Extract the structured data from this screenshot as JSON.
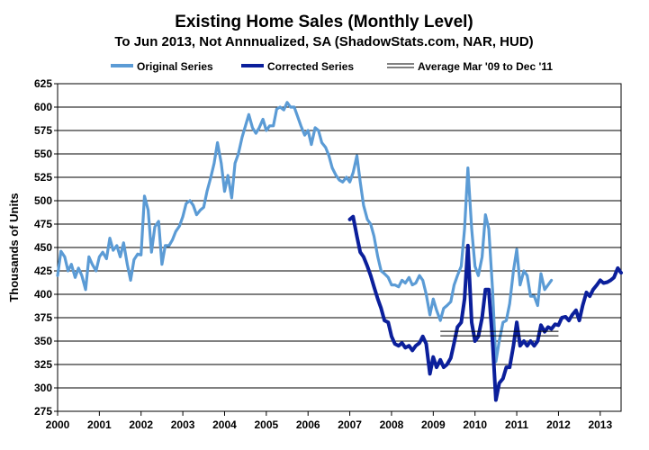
{
  "chart_data": {
    "type": "line",
    "title": "Existing Home Sales (Monthly Level)",
    "subtitle": "To Jun 2013, Not Annnualized, SA (ShadowStats.com, NAR, HUD)",
    "ylabel": "Thousands of Units",
    "xlabel": "",
    "ylim": [
      275,
      625
    ],
    "y_ticks": [
      275,
      300,
      325,
      350,
      375,
      400,
      425,
      450,
      475,
      500,
      525,
      550,
      575,
      600,
      625
    ],
    "xlim": [
      2000,
      2013.5
    ],
    "x_ticks": [
      "2000",
      "2001",
      "2002",
      "2003",
      "2004",
      "2005",
      "2006",
      "2007",
      "2008",
      "2009",
      "2010",
      "2011",
      "2012",
      "2013"
    ],
    "grid": true,
    "legend_position": "top",
    "series": [
      {
        "name": "Original Series",
        "color": "#5b9bd5",
        "points": [
          [
            2000.0,
            420
          ],
          [
            2000.08,
            446
          ],
          [
            2000.17,
            440
          ],
          [
            2000.25,
            425
          ],
          [
            2000.33,
            432
          ],
          [
            2000.42,
            418
          ],
          [
            2000.5,
            428
          ],
          [
            2000.58,
            420
          ],
          [
            2000.67,
            405
          ],
          [
            2000.75,
            440
          ],
          [
            2000.83,
            432
          ],
          [
            2000.92,
            425
          ],
          [
            2001.0,
            440
          ],
          [
            2001.08,
            445
          ],
          [
            2001.17,
            438
          ],
          [
            2001.25,
            460
          ],
          [
            2001.33,
            447
          ],
          [
            2001.42,
            452
          ],
          [
            2001.5,
            440
          ],
          [
            2001.58,
            455
          ],
          [
            2001.67,
            432
          ],
          [
            2001.75,
            415
          ],
          [
            2001.83,
            437
          ],
          [
            2001.92,
            443
          ],
          [
            2002.0,
            442
          ],
          [
            2002.08,
            505
          ],
          [
            2002.17,
            490
          ],
          [
            2002.25,
            445
          ],
          [
            2002.33,
            472
          ],
          [
            2002.42,
            478
          ],
          [
            2002.5,
            432
          ],
          [
            2002.58,
            452
          ],
          [
            2002.67,
            452
          ],
          [
            2002.75,
            458
          ],
          [
            2002.83,
            467
          ],
          [
            2002.92,
            473
          ],
          [
            2003.0,
            483
          ],
          [
            2003.08,
            497
          ],
          [
            2003.17,
            500
          ],
          [
            2003.25,
            495
          ],
          [
            2003.33,
            485
          ],
          [
            2003.42,
            490
          ],
          [
            2003.5,
            493
          ],
          [
            2003.58,
            510
          ],
          [
            2003.67,
            525
          ],
          [
            2003.75,
            540
          ],
          [
            2003.83,
            562
          ],
          [
            2003.92,
            540
          ],
          [
            2004.0,
            510
          ],
          [
            2004.08,
            527
          ],
          [
            2004.17,
            503
          ],
          [
            2004.25,
            540
          ],
          [
            2004.33,
            550
          ],
          [
            2004.42,
            568
          ],
          [
            2004.5,
            580
          ],
          [
            2004.58,
            592
          ],
          [
            2004.67,
            578
          ],
          [
            2004.75,
            572
          ],
          [
            2004.83,
            578
          ],
          [
            2004.92,
            587
          ],
          [
            2005.0,
            575
          ],
          [
            2005.08,
            580
          ],
          [
            2005.17,
            580
          ],
          [
            2005.25,
            598
          ],
          [
            2005.33,
            600
          ],
          [
            2005.42,
            597
          ],
          [
            2005.5,
            605
          ],
          [
            2005.58,
            600
          ],
          [
            2005.67,
            600
          ],
          [
            2005.75,
            590
          ],
          [
            2005.83,
            580
          ],
          [
            2005.92,
            570
          ],
          [
            2006.0,
            575
          ],
          [
            2006.08,
            560
          ],
          [
            2006.17,
            578
          ],
          [
            2006.25,
            575
          ],
          [
            2006.33,
            562
          ],
          [
            2006.42,
            557
          ],
          [
            2006.5,
            548
          ],
          [
            2006.58,
            535
          ],
          [
            2006.67,
            527
          ],
          [
            2006.75,
            522
          ],
          [
            2006.83,
            520
          ],
          [
            2006.92,
            525
          ],
          [
            2007.0,
            520
          ],
          [
            2007.08,
            530
          ],
          [
            2007.17,
            548
          ],
          [
            2007.25,
            520
          ],
          [
            2007.33,
            495
          ],
          [
            2007.42,
            480
          ],
          [
            2007.5,
            475
          ],
          [
            2007.58,
            462
          ],
          [
            2007.67,
            440
          ],
          [
            2007.75,
            425
          ],
          [
            2007.83,
            422
          ],
          [
            2007.92,
            418
          ],
          [
            2008.0,
            410
          ],
          [
            2008.08,
            410
          ],
          [
            2008.17,
            408
          ],
          [
            2008.25,
            415
          ],
          [
            2008.33,
            412
          ],
          [
            2008.42,
            418
          ],
          [
            2008.5,
            410
          ],
          [
            2008.58,
            412
          ],
          [
            2008.67,
            420
          ],
          [
            2008.75,
            415
          ],
          [
            2008.83,
            400
          ],
          [
            2008.92,
            378
          ],
          [
            2009.0,
            395
          ],
          [
            2009.08,
            383
          ],
          [
            2009.17,
            372
          ],
          [
            2009.25,
            385
          ],
          [
            2009.33,
            388
          ],
          [
            2009.42,
            392
          ],
          [
            2009.5,
            410
          ],
          [
            2009.58,
            420
          ],
          [
            2009.67,
            430
          ],
          [
            2009.75,
            470
          ],
          [
            2009.83,
            535
          ],
          [
            2009.92,
            470
          ],
          [
            2010.0,
            430
          ],
          [
            2010.08,
            420
          ],
          [
            2010.17,
            440
          ],
          [
            2010.25,
            485
          ],
          [
            2010.33,
            470
          ],
          [
            2010.42,
            405
          ],
          [
            2010.5,
            328
          ],
          [
            2010.58,
            350
          ],
          [
            2010.67,
            370
          ],
          [
            2010.75,
            372
          ],
          [
            2010.83,
            390
          ],
          [
            2010.92,
            425
          ],
          [
            2011.0,
            448
          ],
          [
            2011.08,
            410
          ],
          [
            2011.17,
            425
          ],
          [
            2011.25,
            420
          ],
          [
            2011.33,
            398
          ],
          [
            2011.42,
            398
          ],
          [
            2011.5,
            388
          ],
          [
            2011.58,
            422
          ],
          [
            2011.67,
            405
          ],
          [
            2011.75,
            410
          ],
          [
            2011.83,
            415
          ]
        ]
      },
      {
        "name": "Corrected Series",
        "color": "#0b1f9b",
        "points": [
          [
            2007.0,
            480
          ],
          [
            2007.08,
            483
          ],
          [
            2007.17,
            462
          ],
          [
            2007.25,
            445
          ],
          [
            2007.33,
            440
          ],
          [
            2007.42,
            430
          ],
          [
            2007.5,
            420
          ],
          [
            2007.58,
            408
          ],
          [
            2007.67,
            395
          ],
          [
            2007.75,
            385
          ],
          [
            2007.83,
            372
          ],
          [
            2007.92,
            370
          ],
          [
            2008.0,
            355
          ],
          [
            2008.08,
            347
          ],
          [
            2008.17,
            345
          ],
          [
            2008.25,
            348
          ],
          [
            2008.33,
            343
          ],
          [
            2008.42,
            345
          ],
          [
            2008.5,
            340
          ],
          [
            2008.58,
            345
          ],
          [
            2008.67,
            348
          ],
          [
            2008.75,
            355
          ],
          [
            2008.83,
            347
          ],
          [
            2008.92,
            315
          ],
          [
            2009.0,
            333
          ],
          [
            2009.08,
            322
          ],
          [
            2009.17,
            330
          ],
          [
            2009.25,
            322
          ],
          [
            2009.33,
            325
          ],
          [
            2009.42,
            332
          ],
          [
            2009.5,
            348
          ],
          [
            2009.58,
            365
          ],
          [
            2009.67,
            370
          ],
          [
            2009.75,
            395
          ],
          [
            2009.83,
            452
          ],
          [
            2009.92,
            370
          ],
          [
            2010.0,
            350
          ],
          [
            2010.08,
            355
          ],
          [
            2010.17,
            375
          ],
          [
            2010.25,
            405
          ],
          [
            2010.33,
            405
          ],
          [
            2010.42,
            350
          ],
          [
            2010.5,
            287
          ],
          [
            2010.58,
            305
          ],
          [
            2010.67,
            310
          ],
          [
            2010.75,
            322
          ],
          [
            2010.83,
            322
          ],
          [
            2010.92,
            345
          ],
          [
            2011.0,
            370
          ],
          [
            2011.08,
            345
          ],
          [
            2011.17,
            350
          ],
          [
            2011.25,
            345
          ],
          [
            2011.33,
            350
          ],
          [
            2011.42,
            345
          ],
          [
            2011.5,
            350
          ],
          [
            2011.58,
            367
          ],
          [
            2011.67,
            360
          ],
          [
            2011.75,
            365
          ],
          [
            2011.83,
            363
          ],
          [
            2011.92,
            368
          ],
          [
            2012.0,
            367
          ],
          [
            2012.08,
            375
          ],
          [
            2012.17,
            376
          ],
          [
            2012.25,
            372
          ],
          [
            2012.33,
            378
          ],
          [
            2012.42,
            383
          ],
          [
            2012.5,
            372
          ],
          [
            2012.58,
            388
          ],
          [
            2012.67,
            402
          ],
          [
            2012.75,
            398
          ],
          [
            2012.83,
            405
          ],
          [
            2012.92,
            410
          ],
          [
            2013.0,
            415
          ],
          [
            2013.08,
            412
          ],
          [
            2013.17,
            413
          ],
          [
            2013.25,
            415
          ],
          [
            2013.33,
            418
          ],
          [
            2013.42,
            428
          ],
          [
            2013.5,
            423
          ]
        ]
      },
      {
        "name": "Average Mar '09 to Dec '11",
        "color": "#000000",
        "points": [
          [
            2009.17,
            358
          ],
          [
            2012.0,
            358
          ]
        ]
      }
    ]
  }
}
